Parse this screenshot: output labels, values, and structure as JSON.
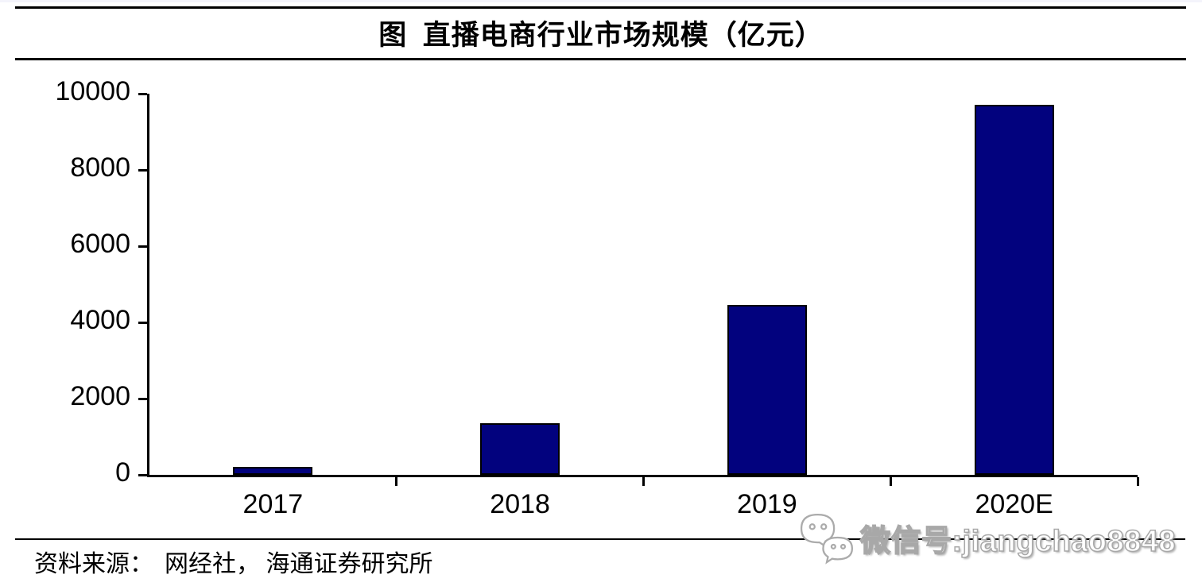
{
  "header": {
    "title": "图  直播电商行业市场规模（亿元）"
  },
  "chart_data": {
    "type": "bar",
    "title": "图  直播电商行业市场规模（亿元）",
    "categories": [
      "2017",
      "2018",
      "2019",
      "2020E"
    ],
    "values": [
      200,
      1350,
      4450,
      9700
    ],
    "unit": "亿元",
    "xlabel": "",
    "ylabel": "",
    "ylim": [
      0,
      10000
    ],
    "yticks": [
      0,
      2000,
      4000,
      6000,
      8000,
      10000
    ],
    "grid": false,
    "legend": "none",
    "bar_color": "#02027e",
    "bar_border_color": "#000000",
    "axis_color": "#000000"
  },
  "footer": {
    "source_label": "资料来源：",
    "source_text": "网经社， 海通证券研究所"
  },
  "watermark": {
    "icon": "wechat-icon",
    "text": "微信号:jiangchao8848"
  }
}
